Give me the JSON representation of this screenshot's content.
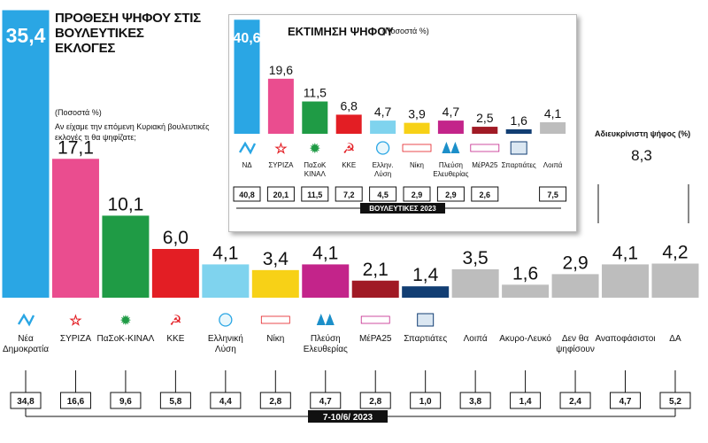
{
  "header": {
    "title": "ΠΡΟΘΕΣΗ ΨΗΦΟΥ ΣΤΙΣ ΒΟΥΛΕΥΤΙΚΕΣ ΕΚΛΟΓΕΣ",
    "unit": "(Ποσοστά %)",
    "question": "Αν είχαμε την επόμενη Κυριακή βουλευτικές εκλογές τι θα ψηφίζατε;"
  },
  "undecided": {
    "label": "Αδιευκρίνιστη ψήφος (%)",
    "value": "8,3"
  },
  "chart_data": [
    {
      "type": "bar",
      "title": "ΠΡΟΘΕΣΗ ΨΗΦΟΥ ΣΤΙΣ ΒΟΥΛΕΥΤΙΚΕΣ ΕΚΛΟΓΕΣ",
      "unit": "(Ποσοστά %)",
      "categories": [
        "Νέα Δημοκρατία",
        "ΣΥΡΙΖΑ",
        "ΠαΣοΚ-ΚΙΝΑΛ",
        "ΚΚΕ",
        "Ελληνική Λύση",
        "Νίκη",
        "Πλεύση Ελευθερίας",
        "ΜέΡΑ25",
        "Σπαρτιάτες",
        "Λοιπά",
        "Ακυρο-Λευκό",
        "Δεν θα ψηφίσουν",
        "Αναποφάσιστοι",
        "ΔΑ"
      ],
      "values": [
        35.4,
        17.1,
        10.1,
        6.0,
        4.1,
        3.4,
        4.1,
        2.1,
        1.4,
        3.5,
        1.6,
        2.9,
        4.1,
        4.2
      ],
      "value_labels": [
        "35,4",
        "17,1",
        "10,1",
        "6,0",
        "4,1",
        "3,4",
        "4,1",
        "2,1",
        "1,4",
        "3,5",
        "1,6",
        "2,9",
        "4,1",
        "4,2"
      ],
      "colors": [
        "#2aa6e4",
        "#ea4d8f",
        "#1f9b45",
        "#e31e24",
        "#7fd3ee",
        "#f7d117",
        "#c3248a",
        "#a01a25",
        "#123e73",
        "#bdbdbd",
        "#bdbdbd",
        "#bdbdbd",
        "#bdbdbd",
        "#bdbdbd"
      ],
      "logos": [
        "Νέα Δημοκρατία logo",
        "ΣΥΡΙΖΑ logo",
        "ΠαΣοΚ-ΚΙΝΑΛ logo",
        "ΚΚΕ logo",
        "Ελληνική Λύση logo",
        "Νίκη logo",
        "Πλεύση Ελευθερίας logo",
        "ΜέΡΑ25 logo",
        "Σπαρτιάτες logo",
        "",
        "",
        "",
        "",
        ""
      ],
      "previous_survey": [
        "34,8",
        "16,6",
        "9,6",
        "5,8",
        "4,4",
        "2,8",
        "4,7",
        "2,8",
        "1,0",
        "3,8",
        "1,4",
        "2,4",
        "4,7",
        "5,2"
      ],
      "date_label": "7-10/6/ 2023"
    },
    {
      "type": "bar",
      "title": "ΕΚΤΙΜΗΣΗ ΨΗΦΟΥ",
      "unit": "(Ποσοστά %)",
      "categories": [
        "ΝΔ",
        "ΣΥΡΙΖΑ",
        "ΠαΣοΚ-ΚΙΝΑΛ",
        "ΚΚΕ",
        "Ελλην. Λύση",
        "Νίκη",
        "Πλεύση Ελευθερίας",
        "ΜέΡΑ25",
        "Σπαρτιάτες",
        "Λοιπά"
      ],
      "values": [
        40.6,
        19.6,
        11.5,
        6.8,
        4.7,
        3.9,
        4.7,
        2.5,
        1.6,
        4.1
      ],
      "value_labels": [
        "40,6",
        "19,6",
        "11,5",
        "6,8",
        "4,7",
        "3,9",
        "4,7",
        "2,5",
        "1,6",
        "4,1"
      ],
      "colors": [
        "#2aa6e4",
        "#ea4d8f",
        "#1f9b45",
        "#e31e24",
        "#7fd3ee",
        "#f7d117",
        "#c3248a",
        "#a01a25",
        "#123e73",
        "#bdbdbd"
      ],
      "logos": [
        "ΝΔ logo",
        "ΣΥΡΙΖΑ logo",
        "ΠαΣοΚ-ΚΙΝΑΛ logo",
        "ΚΚΕ logo",
        "Ελλην. Λύση logo",
        "Νίκη logo",
        "Πλεύση Ελευθερίας logo",
        "ΜέΡΑ25 logo",
        "Σπαρτιάτες logo",
        ""
      ],
      "election_results": [
        "40,8",
        "20,1",
        "11,5",
        "7,2",
        "4,5",
        "2,9",
        "2,9",
        "2,6",
        "",
        "7,5"
      ],
      "results_label": "ΒΟΥΛΕΥΤΙΚΕΣ 2023"
    }
  ]
}
